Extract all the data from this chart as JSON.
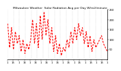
{
  "title": "Milwaukee Weather  Solar Radiation Avg per Day W/m2/minute",
  "title_fontsize": 3.2,
  "line_color": "#FF0000",
  "line_width": 0.8,
  "background_color": "#ffffff",
  "grid_color": "#888888",
  "ylim": [
    0,
    250
  ],
  "xlim": [
    0,
    53
  ],
  "ylabel_right": true,
  "ytick_labels": [
    "50",
    "100",
    "150",
    "200",
    "250"
  ],
  "ytick_values": [
    50,
    100,
    150,
    200,
    250
  ],
  "xlabel_fontsize": 2.8,
  "ylabel_fontsize": 2.8,
  "data_y": [
    180,
    60,
    160,
    50,
    140,
    80,
    120,
    40,
    100,
    30,
    80,
    50,
    100,
    200,
    80,
    180,
    60,
    220,
    100,
    240,
    120,
    200,
    80,
    160,
    40,
    120,
    30,
    80,
    20,
    60,
    40,
    100,
    60,
    140,
    80,
    160,
    100,
    180,
    120,
    160,
    80,
    140,
    60,
    120,
    40,
    100,
    60,
    80,
    100,
    120,
    80,
    60,
    40
  ]
}
